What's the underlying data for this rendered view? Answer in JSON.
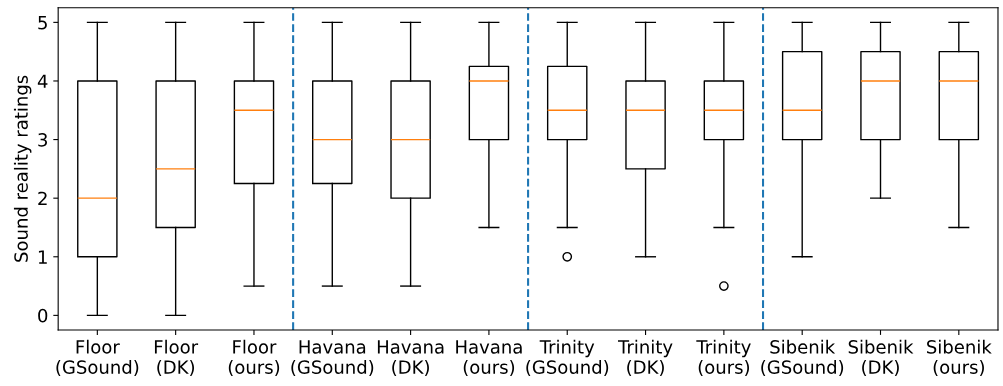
{
  "chart_data": {
    "type": "box",
    "ylabel": "Sound reality ratings",
    "categories": [
      "Floor\n(GSound)",
      "Floor\n(DK)",
      "Floor\n(ours)",
      "Havana\n(GSound)",
      "Havana\n(DK)",
      "Havana\n(ours)",
      "Trinity\n(GSound)",
      "Trinity\n(DK)",
      "Trinity\n(ours)",
      "Sibenik\n(GSound)",
      "Sibenik\n(DK)",
      "Sibenik\n(ours)"
    ],
    "series": [
      {
        "boxes": [
          {
            "low": 0,
            "q1": 1,
            "median": 2,
            "q3": 4,
            "high": 5
          },
          {
            "low": 0,
            "q1": 1.5,
            "median": 2.5,
            "q3": 4,
            "high": 5
          },
          {
            "low": 0.5,
            "q1": 2.25,
            "median": 3.5,
            "q3": 4,
            "high": 5
          },
          {
            "low": 0.5,
            "q1": 2.25,
            "median": 3,
            "q3": 4,
            "high": 5
          },
          {
            "low": 0.5,
            "q1": 2,
            "median": 3,
            "q3": 4,
            "high": 5
          },
          {
            "low": 1.5,
            "q1": 3,
            "median": 4,
            "q3": 4.25,
            "high": 5
          },
          {
            "low": 1.5,
            "q1": 3,
            "median": 3.5,
            "q3": 4.25,
            "high": 5,
            "outliers": [
              1
            ]
          },
          {
            "low": 1,
            "q1": 2.5,
            "median": 3.5,
            "q3": 4,
            "high": 5
          },
          {
            "low": 1.5,
            "q1": 3,
            "median": 3.5,
            "q3": 4,
            "high": 5,
            "outliers": [
              0.5
            ]
          },
          {
            "low": 1,
            "q1": 3,
            "median": 3.5,
            "q3": 4.5,
            "high": 5
          },
          {
            "low": 2,
            "q1": 3,
            "median": 4,
            "q3": 4.5,
            "high": 5
          },
          {
            "low": 1.5,
            "q1": 3,
            "median": 4,
            "q3": 4.5,
            "high": 5
          }
        ]
      }
    ],
    "ylim": [
      -0.25,
      5.25
    ],
    "yticks": [
      0,
      1,
      2,
      3,
      4,
      5
    ],
    "grid": false
  }
}
